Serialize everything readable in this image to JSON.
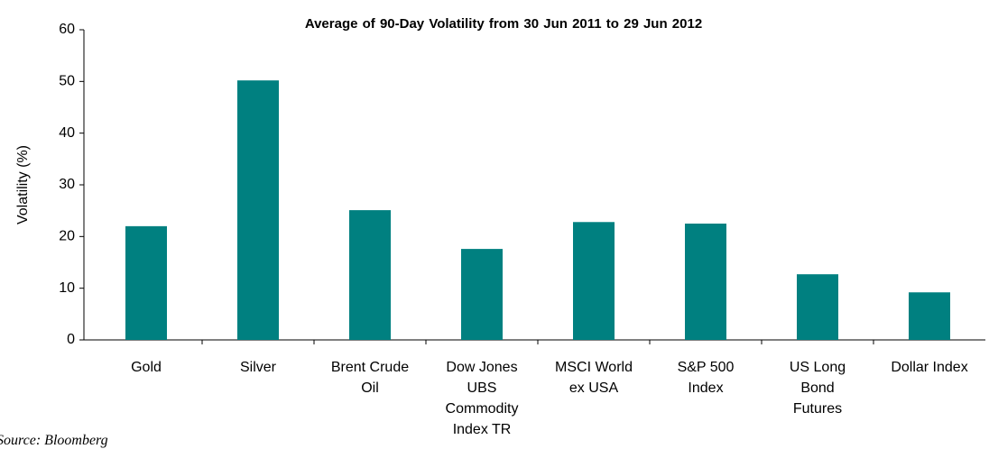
{
  "chart_data": {
    "type": "bar",
    "title": "Average of 90-Day Volatility from 30 Jun 2011 to 29 Jun 2012",
    "y_label": "Volatility (%)",
    "source": "Source: Bloomberg",
    "categories": [
      "Gold",
      "Silver",
      "Brent Crude\nOil",
      "Dow  Jones\nUBS\nCommodity\nIndex TR",
      "MSCI World\nex USA",
      "S&P 500\nIndex",
      "US Long\nBond\nFutures",
      "Dollar Index"
    ],
    "values": [
      22,
      50.2,
      25.1,
      17.6,
      22.8,
      22.5,
      12.7,
      9.2
    ],
    "color": "#008080",
    "ylim": [
      0,
      60
    ],
    "yticks": [
      0,
      10,
      20,
      30,
      40,
      50,
      60
    ],
    "grid": false
  }
}
